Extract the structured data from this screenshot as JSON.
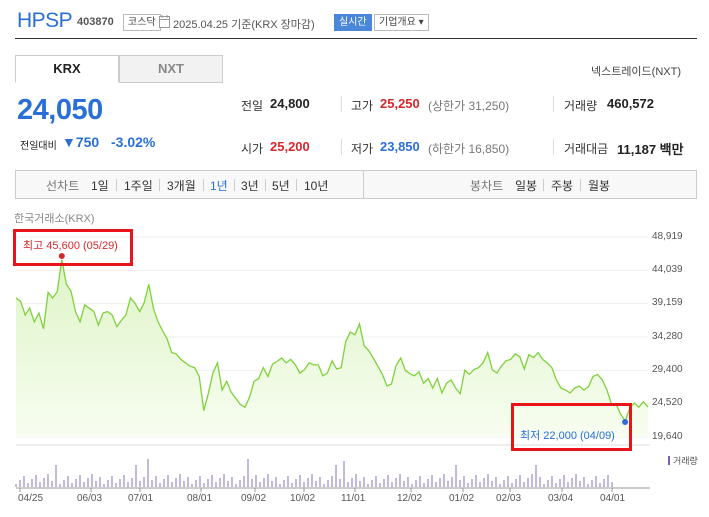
{
  "header": {
    "name": "HPSP",
    "code": "403870",
    "market": "코스닥",
    "datetime": "2025.04.25 기준(KRX 장마감)",
    "realtime": "실시간",
    "company_info": "기업개요 ▾"
  },
  "tabs": [
    {
      "label": "KRX"
    },
    {
      "label": "NXT"
    }
  ],
  "nxt_link": "넥스트레이드(NXT)",
  "price": {
    "current": "24,050",
    "change_label": "전일대비",
    "change_value": "▼750",
    "change_percent": "-3.02%"
  },
  "stats": {
    "prev_close_label": "전일",
    "prev_close": "24,800",
    "high_label": "고가",
    "high": "25,250",
    "upper_limit": "(상한가 31,250)",
    "volume_label": "거래량",
    "volume": "460,572",
    "open_label": "시가",
    "open": "25,200",
    "low_label": "저가",
    "low": "23,850",
    "lower_limit": "(하한가 16,850)",
    "amount_label": "거래대금",
    "amount": "11,187 백만"
  },
  "period_bar": {
    "line_label": "선차트",
    "line_periods": [
      "1일",
      "1주일",
      "3개월",
      "1년",
      "3년",
      "5년",
      "10년"
    ],
    "active": "1년",
    "candle_label": "봉차트",
    "candle_periods": [
      "일봉",
      "주봉",
      "월봉"
    ]
  },
  "source_label": "한국거래소(KRX)",
  "annotations": {
    "max": "최고 45,600 (05/29)",
    "min": "최저 22,000 (04/09)"
  },
  "volume_label": "거래량",
  "colors": {
    "accent": "#2a6fd6",
    "up": "#d6282c",
    "line": "#7fd13b",
    "fill": "#e9f8d8",
    "highlight": "#e8141a"
  },
  "chart_data": {
    "type": "area",
    "title": "",
    "yticks": [
      "48,919",
      "44,039",
      "39,159",
      "34,280",
      "29,400",
      "24,520",
      "19,640"
    ],
    "ylim": [
      19640,
      48919
    ],
    "xticks": [
      "04/25",
      "06/03",
      "07/01",
      "08/01",
      "09/02",
      "10/02",
      "11/01",
      "12/02",
      "01/02",
      "02/03",
      "03/04",
      "04/01"
    ],
    "series": [
      {
        "values": [
          40000,
          39500,
          37500,
          38500,
          36500,
          37800,
          35500,
          40800,
          40000,
          40900,
          45600,
          42000,
          41000,
          38000,
          36500,
          39000,
          38500,
          38000,
          36000,
          37800,
          38000,
          37500,
          35800,
          36700,
          37500,
          40000,
          39200,
          38000,
          39300,
          42000,
          38500,
          36500,
          35200,
          34000,
          32000,
          31800,
          31000,
          30500,
          30000,
          29800,
          28500,
          23500,
          26000,
          29000,
          30500,
          26500,
          27800,
          26200,
          25300,
          24400,
          24000,
          25500,
          27800,
          28200,
          29800,
          28500,
          30300,
          30700,
          31200,
          30500,
          31000,
          30200,
          29000,
          29500,
          30500,
          30200,
          30200,
          28600,
          29000,
          30800,
          29600,
          29800,
          33600,
          35000,
          34600,
          36200,
          33000,
          32300,
          31200,
          30000,
          28800,
          27100,
          27400,
          30100,
          31200,
          29400,
          28900,
          28600,
          29200,
          27500,
          28200,
          26800,
          28200,
          26100,
          27500,
          28000,
          26800,
          26000,
          29400,
          28800,
          29500,
          29800,
          30500,
          32000,
          29500,
          29000,
          30000,
          30800,
          31000,
          31800,
          31400,
          29600,
          31700,
          31300,
          32000,
          31000,
          30500,
          29800,
          28000,
          26800,
          26500,
          26100,
          26800,
          27100,
          26500,
          27000,
          28500,
          28800,
          28000,
          26600,
          24500,
          24500,
          23000,
          22000,
          23800,
          24600,
          24000,
          24800,
          24050
        ]
      }
    ],
    "max": 45600,
    "min": 22000
  }
}
